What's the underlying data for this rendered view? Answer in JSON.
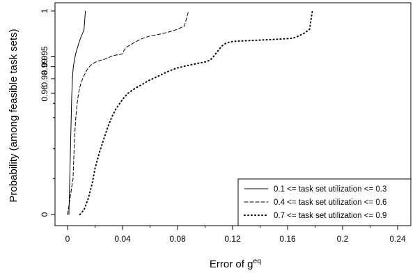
{
  "chart_data": {
    "type": "line",
    "xlabel": "Error of g",
    "xlabel_superscript": "eq",
    "ylabel": "Probability (among feasible task sets)",
    "xlim": [
      0,
      0.24
    ],
    "y_scale": "transformed (non-linear, expanded near 1)",
    "x_ticks": [
      0,
      0.04,
      0.08,
      0.12,
      0.16,
      0.2,
      0.24
    ],
    "x_tick_labels": [
      "0",
      "0.04",
      "0.08",
      "0.12",
      "0.16",
      "0.2",
      "0.24"
    ],
    "x_minor_ticks": [
      0.02,
      0.06,
      0.1,
      0.14,
      0.18,
      0.22
    ],
    "y_ticks": [
      0,
      0.96,
      0.98,
      0.99,
      0.995,
      1
    ],
    "y_tick_labels": [
      "0",
      "0.96",
      "0.98",
      "0.99",
      "0.995",
      "1"
    ],
    "y_minor_ticks": [
      0.5,
      0.75,
      0.9,
      0.94
    ],
    "grid": false,
    "legend_position": "bottom-right",
    "series": [
      {
        "name": "0.1 <= task set utilization <= 0.3",
        "line_style": "solid",
        "x": [
          0.001,
          0.002,
          0.003,
          0.0035,
          0.004,
          0.0045,
          0.005,
          0.0055,
          0.006,
          0.007,
          0.008,
          0.009,
          0.01,
          0.011,
          0.012,
          0.013
        ],
        "y": [
          0,
          0.7,
          0.95,
          0.978,
          0.988,
          0.9915,
          0.9935,
          0.995,
          0.9962,
          0.9975,
          0.9984,
          0.999,
          0.9994,
          0.9996,
          0.9998,
          1
        ]
      },
      {
        "name": "0.4 <= task set utilization <= 0.6",
        "line_style": "dashed",
        "x": [
          0,
          0.004,
          0.005,
          0.006,
          0.007,
          0.008,
          0.009,
          0.01,
          0.011,
          0.012,
          0.013,
          0.014,
          0.015,
          0.016,
          0.017,
          0.018,
          0.019,
          0.02,
          0.022,
          0.024,
          0.026,
          0.028,
          0.03,
          0.032,
          0.034,
          0.036,
          0.038,
          0.04,
          0.041,
          0.042,
          0.043,
          0.044,
          0.046,
          0.048,
          0.05,
          0.052,
          0.055,
          0.06,
          0.065,
          0.07,
          0.075,
          0.08,
          0.085,
          0.088
        ],
        "y": [
          0,
          0.5,
          0.8,
          0.9,
          0.94,
          0.96,
          0.97,
          0.976,
          0.98,
          0.983,
          0.9855,
          0.9875,
          0.989,
          0.99,
          0.991,
          0.9915,
          0.992,
          0.9925,
          0.993,
          0.9935,
          0.9938,
          0.9942,
          0.9947,
          0.9952,
          0.9955,
          0.9957,
          0.9958,
          0.996,
          0.997,
          0.9975,
          0.9978,
          0.998,
          0.9983,
          0.9986,
          0.9988,
          0.999,
          0.9992,
          0.9994,
          0.9995,
          0.9996,
          0.9997,
          0.9998,
          0.9999,
          1
        ]
      },
      {
        "name": "0.7 <= task set utilization <= 0.9",
        "line_style": "dotted",
        "x": [
          0.009,
          0.012,
          0.015,
          0.018,
          0.02,
          0.023,
          0.026,
          0.029,
          0.032,
          0.035,
          0.038,
          0.041,
          0.044,
          0.047,
          0.05,
          0.053,
          0.056,
          0.059,
          0.062,
          0.065,
          0.068,
          0.071,
          0.074,
          0.077,
          0.08,
          0.083,
          0.086,
          0.089,
          0.092,
          0.095,
          0.098,
          0.1,
          0.102,
          0.104,
          0.106,
          0.108,
          0.11,
          0.112,
          0.114,
          0.116,
          0.118,
          0.12,
          0.124,
          0.13,
          0.136,
          0.142,
          0.148,
          0.154,
          0.16,
          0.164,
          0.168,
          0.172,
          0.176,
          0.178
        ],
        "y": [
          0,
          0.08,
          0.25,
          0.45,
          0.6,
          0.72,
          0.8,
          0.86,
          0.9,
          0.925,
          0.94,
          0.952,
          0.96,
          0.965,
          0.969,
          0.972,
          0.975,
          0.978,
          0.98,
          0.982,
          0.9838,
          0.9855,
          0.987,
          0.9882,
          0.9892,
          0.9898,
          0.9905,
          0.991,
          0.9915,
          0.992,
          0.9924,
          0.9927,
          0.9931,
          0.9938,
          0.995,
          0.9962,
          0.9972,
          0.998,
          0.9984,
          0.9986,
          0.9987,
          0.9988,
          0.99885,
          0.9989,
          0.99895,
          0.999,
          0.99905,
          0.9991,
          0.99915,
          0.9992,
          0.9994,
          0.9996,
          0.9998,
          1
        ]
      }
    ]
  }
}
